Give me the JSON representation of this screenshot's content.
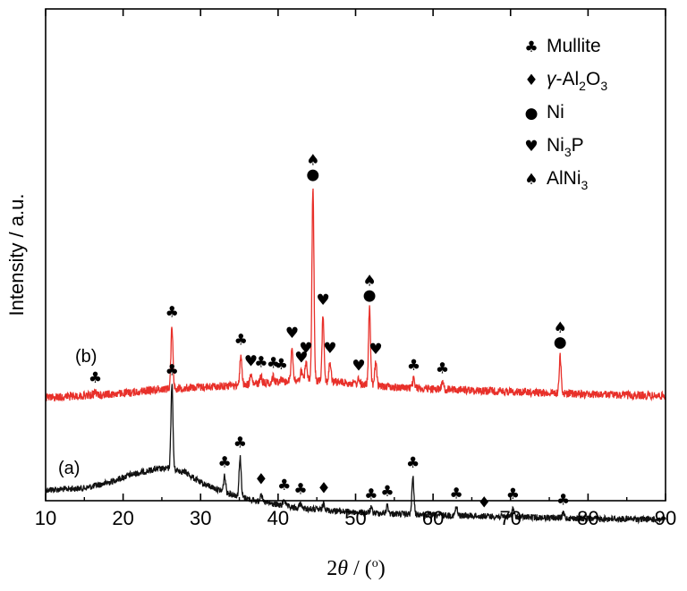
{
  "chart_data": {
    "type": "line",
    "xlabel_parts": [
      "2",
      "θ",
      " / (",
      "o",
      ")"
    ],
    "ylabel": "Intensity / a.u.",
    "xlim": [
      10,
      90
    ],
    "xticks": [
      10,
      20,
      30,
      40,
      50,
      60,
      70,
      80,
      90
    ],
    "grid": false,
    "legend_position": "top-right",
    "legend": [
      {
        "symbol": "♣",
        "parts": [
          {
            "t": "Mullite"
          }
        ]
      },
      {
        "symbol": "♦",
        "parts": [
          {
            "t": "γ",
            "i": true
          },
          {
            "t": "-Al"
          },
          {
            "t": "2",
            "sub": true
          },
          {
            "t": "O"
          },
          {
            "t": "3",
            "sub": true
          }
        ]
      },
      {
        "symbol": "●",
        "parts": [
          {
            "t": "Ni"
          }
        ]
      },
      {
        "symbol": "♥",
        "parts": [
          {
            "t": "Ni"
          },
          {
            "t": "3",
            "sub": true
          },
          {
            "t": "P"
          }
        ]
      },
      {
        "symbol": "♠",
        "parts": [
          {
            "t": "AlNi"
          },
          {
            "t": "3",
            "sub": true
          }
        ]
      }
    ],
    "series": [
      {
        "name": "(a)",
        "color": "#111111",
        "baseline": [
          [
            10,
            80
          ],
          [
            15,
            82
          ],
          [
            18,
            88
          ],
          [
            21,
            97
          ],
          [
            24,
            103
          ],
          [
            26,
            104
          ],
          [
            28,
            100
          ],
          [
            30,
            88
          ],
          [
            33,
            78
          ],
          [
            37,
            68
          ],
          [
            42,
            60
          ],
          [
            50,
            55
          ],
          [
            60,
            52
          ],
          [
            70,
            50
          ],
          [
            80,
            48
          ],
          [
            90,
            47
          ]
        ],
        "peaks": [
          {
            "x": 26.3,
            "h": 95,
            "markers": [
              "♣"
            ]
          },
          {
            "x": 33.1,
            "h": 18,
            "markers": [
              "♣"
            ]
          },
          {
            "x": 35.1,
            "h": 45,
            "markers": [
              "♣"
            ]
          },
          {
            "x": 37.8,
            "h": 10,
            "markers": [
              "♦"
            ]
          },
          {
            "x": 40.8,
            "h": 8,
            "markers": [
              "♣"
            ]
          },
          {
            "x": 42.9,
            "h": 6,
            "markers": [
              "♣"
            ]
          },
          {
            "x": 45.9,
            "h": 9,
            "markers": [
              "♦"
            ]
          },
          {
            "x": 52.0,
            "h": 5,
            "markers": [
              "♣"
            ]
          },
          {
            "x": 54.1,
            "h": 9,
            "markers": [
              "♣"
            ]
          },
          {
            "x": 57.4,
            "h": 42,
            "markers": [
              "♣"
            ]
          },
          {
            "x": 63.0,
            "h": 9,
            "markers": [
              "♣"
            ]
          },
          {
            "x": 66.6,
            "h": 0,
            "markers": [
              "♦"
            ]
          },
          {
            "x": 70.3,
            "h": 10,
            "markers": [
              "♣"
            ]
          },
          {
            "x": 76.8,
            "h": 5,
            "markers": [
              "♣"
            ]
          }
        ]
      },
      {
        "name": "(b)",
        "color": "#e8302a",
        "baseline": [
          [
            10,
            140
          ],
          [
            20,
            145
          ],
          [
            25,
            150
          ],
          [
            30,
            152
          ],
          [
            36,
            155
          ],
          [
            40,
            158
          ],
          [
            44,
            160
          ],
          [
            50,
            156
          ],
          [
            55,
            152
          ],
          [
            60,
            150
          ],
          [
            70,
            147
          ],
          [
            80,
            144
          ],
          [
            90,
            142
          ]
        ],
        "peaks": [
          {
            "x": 16.4,
            "h": 4,
            "markers": [
              "♣"
            ]
          },
          {
            "x": 26.3,
            "h": 70,
            "markers": [
              "♣"
            ]
          },
          {
            "x": 35.2,
            "h": 35,
            "markers": [
              "♣"
            ]
          },
          {
            "x": 36.5,
            "h": 10,
            "markers": [
              "♥"
            ]
          },
          {
            "x": 37.8,
            "h": 8,
            "markers": [
              "♣"
            ]
          },
          {
            "x": 39.4,
            "h": 6,
            "markers": [
              "♣"
            ]
          },
          {
            "x": 40.4,
            "h": 4,
            "markers": [
              "♣"
            ]
          },
          {
            "x": 41.8,
            "h": 38,
            "markers": [
              "♥"
            ]
          },
          {
            "x": 43.0,
            "h": 10,
            "markers": [
              "♥"
            ]
          },
          {
            "x": 43.6,
            "h": 20,
            "markers": [
              "♥"
            ]
          },
          {
            "x": 44.5,
            "h": 215,
            "markers": [
              "●",
              "♠"
            ]
          },
          {
            "x": 45.8,
            "h": 75,
            "markers": [
              "♥"
            ]
          },
          {
            "x": 46.7,
            "h": 22,
            "markers": [
              "♥"
            ]
          },
          {
            "x": 50.4,
            "h": 5,
            "markers": [
              "♥"
            ]
          },
          {
            "x": 51.8,
            "h": 85,
            "markers": [
              "●",
              "♠"
            ]
          },
          {
            "x": 52.6,
            "h": 25,
            "markers": [
              "♥"
            ]
          },
          {
            "x": 57.5,
            "h": 10,
            "markers": [
              "♣"
            ]
          },
          {
            "x": 61.2,
            "h": 8,
            "markers": [
              "♣"
            ]
          },
          {
            "x": 76.4,
            "h": 42,
            "markers": [
              "●",
              "♠"
            ]
          }
        ]
      }
    ]
  }
}
